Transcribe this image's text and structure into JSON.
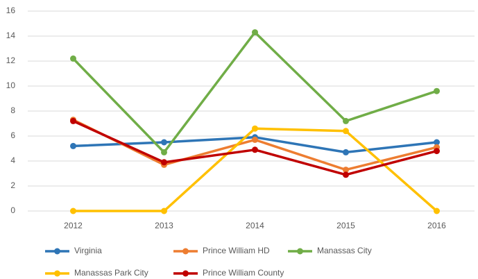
{
  "chart_data": {
    "type": "line",
    "categories": [
      "2012",
      "2013",
      "2014",
      "2015",
      "2016"
    ],
    "series": [
      {
        "name": "Virginia",
        "color": "#2e75b6",
        "values": [
          5.2,
          5.5,
          5.9,
          4.7,
          5.5
        ]
      },
      {
        "name": "Prince William HD",
        "color": "#ed7d31",
        "values": [
          7.3,
          3.7,
          5.7,
          3.3,
          5.1
        ]
      },
      {
        "name": "Manassas City",
        "color": "#70ad47",
        "values": [
          12.2,
          4.7,
          14.3,
          7.2,
          9.6
        ]
      },
      {
        "name": "Manassas Park City",
        "color": "#ffc000",
        "values": [
          0,
          0,
          6.6,
          6.4,
          0
        ]
      },
      {
        "name": "Prince William County",
        "color": "#c00000",
        "values": [
          7.2,
          3.9,
          4.9,
          2.9,
          4.8
        ]
      }
    ],
    "ylim": [
      0,
      16
    ],
    "yticks": [
      0,
      2,
      4,
      6,
      8,
      10,
      12,
      14,
      16
    ],
    "grid": true,
    "legend": "bottom"
  }
}
